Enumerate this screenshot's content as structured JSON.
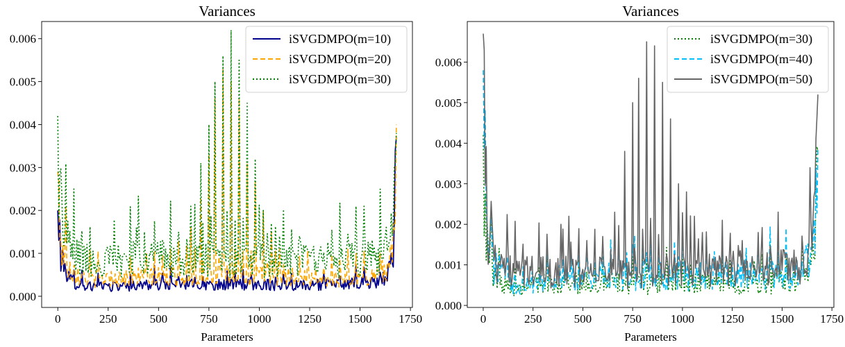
{
  "chart_data": [
    {
      "type": "line",
      "title": "Variances",
      "xlabel": "Parameters",
      "ylabel": "",
      "xlim": [
        -80,
        1760
      ],
      "ylim": [
        -0.00026,
        0.0064
      ],
      "xticks": [
        0,
        250,
        500,
        750,
        1000,
        1250,
        1500,
        1750
      ],
      "xtick_labels": [
        "0",
        "250",
        "500",
        "750",
        "1000",
        "1250",
        "1500",
        "1750"
      ],
      "yticks": [
        0.0,
        0.001,
        0.002,
        0.003,
        0.004,
        0.005,
        0.006
      ],
      "ytick_labels": [
        "0.000",
        "0.001",
        "0.002",
        "0.003",
        "0.004",
        "0.005",
        "0.006"
      ],
      "legend_position": "top-right",
      "x_max": 1680,
      "series": [
        {
          "name": "iSVGDMPO(m=10)",
          "color": "#00008b",
          "dash": "solid",
          "start": 0.002,
          "end": 0.0037,
          "points": [
            [
              0,
              0.002
            ],
            [
              20,
              0.0009
            ],
            [
              60,
              0.0004
            ],
            [
              150,
              0.00025
            ],
            [
              300,
              0.00025
            ],
            [
              500,
              0.0003
            ],
            [
              800,
              0.0003
            ],
            [
              1100,
              0.0003
            ],
            [
              1400,
              0.0003
            ],
            [
              1580,
              0.00035
            ],
            [
              1640,
              0.0005
            ],
            [
              1665,
              0.0012
            ],
            [
              1680,
              0.0037
            ]
          ],
          "spikes": []
        },
        {
          "name": "iSVGDMPO(m=20)",
          "color": "#ffa500",
          "dash": "dashed",
          "start": 0.0029,
          "end": 0.004,
          "points": [
            [
              0,
              0.0029
            ],
            [
              20,
              0.0012
            ],
            [
              60,
              0.0007
            ],
            [
              150,
              0.00045
            ],
            [
              300,
              0.00045
            ],
            [
              500,
              0.0005
            ],
            [
              800,
              0.0005
            ],
            [
              1100,
              0.0005
            ],
            [
              1400,
              0.00045
            ],
            [
              1580,
              0.0005
            ],
            [
              1640,
              0.0008
            ],
            [
              1665,
              0.0016
            ],
            [
              1680,
              0.004
            ]
          ],
          "spikes": [
            [
              600,
              0.0013
            ],
            [
              660,
              0.0016
            ],
            [
              705,
              0.0023
            ],
            [
              745,
              0.0033
            ],
            [
              775,
              0.0046
            ],
            [
              815,
              0.0053
            ],
            [
              855,
              0.005
            ],
            [
              895,
              0.0046
            ],
            [
              935,
              0.0031
            ],
            [
              975,
              0.0027
            ],
            [
              1015,
              0.002
            ],
            [
              1055,
              0.0015
            ],
            [
              1100,
              0.0011
            ]
          ]
        },
        {
          "name": "iSVGDMPO(m=30)",
          "color": "#008000",
          "dash": "dotted",
          "start": 0.0042,
          "end": 0.0038,
          "points": [
            [
              0,
              0.0042
            ],
            [
              20,
              0.002
            ],
            [
              60,
              0.0012
            ],
            [
              150,
              0.0009
            ],
            [
              300,
              0.0009
            ],
            [
              400,
              0.0011
            ],
            [
              500,
              0.001
            ],
            [
              800,
              0.0009
            ],
            [
              1100,
              0.0009
            ],
            [
              1300,
              0.001
            ],
            [
              1400,
              0.0009
            ],
            [
              1580,
              0.001
            ],
            [
              1640,
              0.0013
            ],
            [
              1665,
              0.002
            ],
            [
              1680,
              0.0038
            ]
          ],
          "spikes": [
            [
              390,
              0.0016
            ],
            [
              430,
              0.0015
            ],
            [
              520,
              0.0013
            ],
            [
              600,
              0.0015
            ],
            [
              660,
              0.0021
            ],
            [
              705,
              0.0031
            ],
            [
              745,
              0.004
            ],
            [
              775,
              0.005
            ],
            [
              815,
              0.0056
            ],
            [
              855,
              0.0062
            ],
            [
              895,
              0.0055
            ],
            [
              935,
              0.0045
            ],
            [
              975,
              0.0032
            ],
            [
              1015,
              0.002
            ],
            [
              1055,
              0.0017
            ],
            [
              1100,
              0.0014
            ]
          ]
        }
      ]
    },
    {
      "type": "line",
      "title": "Variances",
      "xlabel": "Parameters",
      "ylabel": "",
      "xlim": [
        -80,
        1760
      ],
      "ylim": [
        -5e-05,
        0.007
      ],
      "xticks": [
        0,
        250,
        500,
        750,
        1000,
        1250,
        1500,
        1750
      ],
      "xtick_labels": [
        "0",
        "250",
        "500",
        "750",
        "1000",
        "1250",
        "1500",
        "1750"
      ],
      "yticks": [
        0.0,
        0.001,
        0.002,
        0.003,
        0.004,
        0.005,
        0.006
      ],
      "ytick_labels": [
        "0.000",
        "0.001",
        "0.002",
        "0.003",
        "0.004",
        "0.005",
        "0.006"
      ],
      "legend_position": "top-right",
      "x_max": 1680,
      "series": [
        {
          "name": "iSVGDMPO(m=30)",
          "color": "#008000",
          "dash": "dotted",
          "start": 0.0042,
          "end": 0.0038,
          "points": [
            [
              0,
              0.0042
            ],
            [
              20,
              0.0015
            ],
            [
              60,
              0.0008
            ],
            [
              150,
              0.0005
            ],
            [
              300,
              0.0006
            ],
            [
              500,
              0.0006
            ],
            [
              800,
              0.0006
            ],
            [
              1100,
              0.0006
            ],
            [
              1400,
              0.0006
            ],
            [
              1580,
              0.0007
            ],
            [
              1640,
              0.001
            ],
            [
              1665,
              0.0018
            ],
            [
              1680,
              0.0038
            ]
          ],
          "spikes": [
            [
              600,
              0.001
            ],
            [
              745,
              0.0012
            ],
            [
              815,
              0.0011
            ],
            [
              975,
              0.001
            ]
          ]
        },
        {
          "name": "iSVGDMPO(m=40)",
          "color": "#00bfff",
          "dash": "dashed",
          "start": 0.0058,
          "end": 0.0039,
          "points": [
            [
              0,
              0.0058
            ],
            [
              20,
              0.0018
            ],
            [
              60,
              0.001
            ],
            [
              150,
              0.0006
            ],
            [
              300,
              0.0007
            ],
            [
              500,
              0.0008
            ],
            [
              800,
              0.0008
            ],
            [
              1100,
              0.0008
            ],
            [
              1400,
              0.0008
            ],
            [
              1580,
              0.0009
            ],
            [
              1640,
              0.0012
            ],
            [
              1665,
              0.002
            ],
            [
              1680,
              0.0039
            ]
          ],
          "spikes": [
            [
              600,
              0.0012
            ],
            [
              745,
              0.0015
            ],
            [
              815,
              0.0013
            ],
            [
              975,
              0.0012
            ],
            [
              1300,
              0.0015
            ],
            [
              1380,
              0.0016
            ]
          ]
        },
        {
          "name": "iSVGDMPO(m=50)",
          "color": "#666666",
          "dash": "solid",
          "start": 0.0067,
          "end": 0.0052,
          "points": [
            [
              0,
              0.0067
            ],
            [
              20,
              0.0022
            ],
            [
              60,
              0.0013
            ],
            [
              150,
              0.0009
            ],
            [
              300,
              0.0009
            ],
            [
              500,
              0.0009
            ],
            [
              800,
              0.0009
            ],
            [
              1100,
              0.001
            ],
            [
              1400,
              0.001
            ],
            [
              1580,
              0.0011
            ],
            [
              1640,
              0.0014
            ],
            [
              1665,
              0.0022
            ],
            [
              1680,
              0.0052
            ]
          ],
          "spikes": [
            [
              390,
              0.002
            ],
            [
              430,
              0.0022
            ],
            [
              520,
              0.0016
            ],
            [
              600,
              0.0017
            ],
            [
              660,
              0.0023
            ],
            [
              705,
              0.0038
            ],
            [
              745,
              0.005
            ],
            [
              775,
              0.0056
            ],
            [
              815,
              0.0065
            ],
            [
              855,
              0.0064
            ],
            [
              895,
              0.0055
            ],
            [
              935,
              0.0046
            ],
            [
              975,
              0.003
            ],
            [
              1015,
              0.0028
            ],
            [
              1055,
              0.0022
            ],
            [
              1100,
              0.0018
            ],
            [
              1300,
              0.0016
            ],
            [
              1380,
              0.0018
            ]
          ]
        }
      ]
    }
  ]
}
